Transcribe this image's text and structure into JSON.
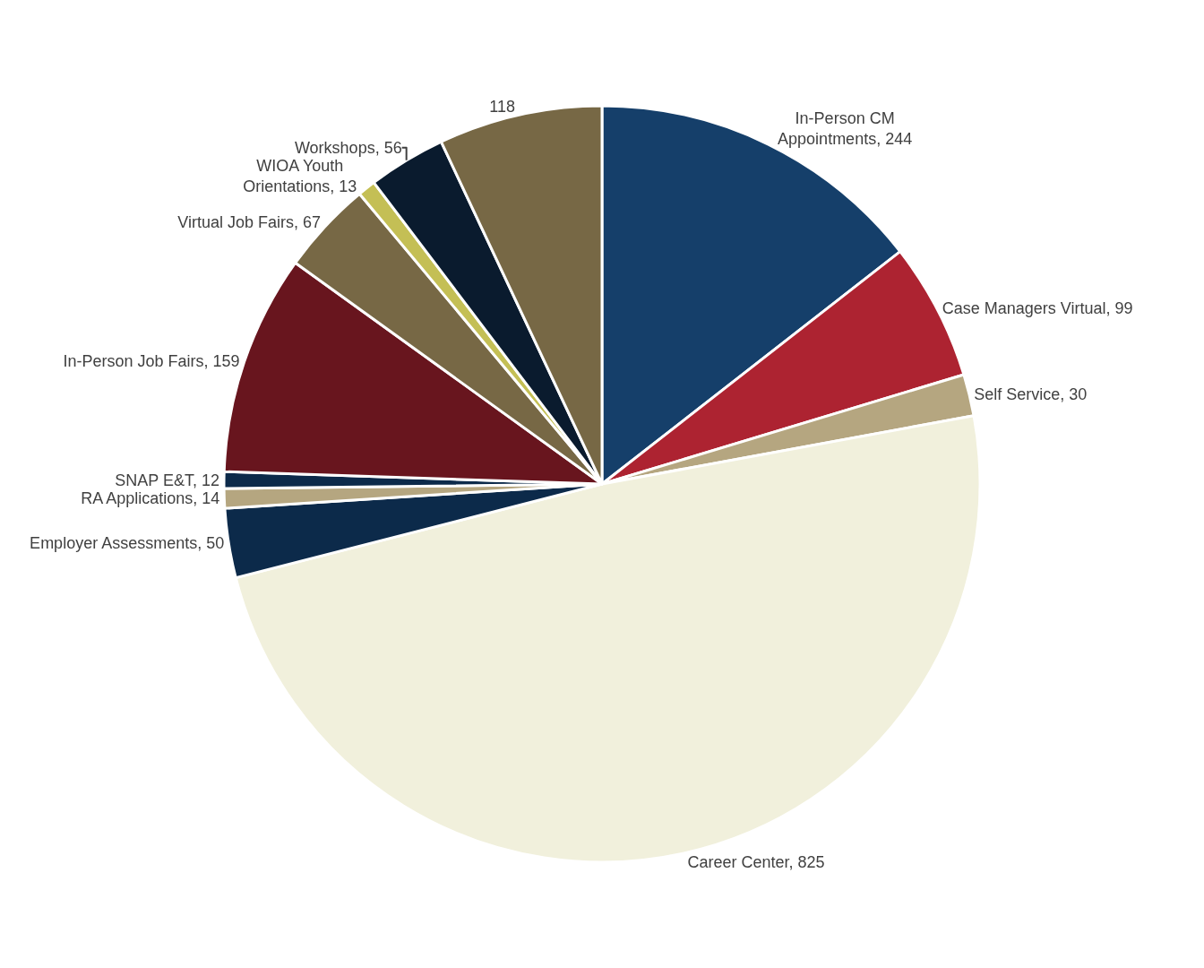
{
  "chart_data": {
    "type": "pie",
    "categories": [
      "In-Person CM Appointments",
      "Case Managers Virtual",
      "Self Service",
      "Career Center",
      "Employer Assessments",
      "RA Applications",
      "SNAP E&T",
      "In-Person Job Fairs",
      "Virtual Job Fairs",
      "WIOA Youth Orientations",
      "Workshops",
      null
    ],
    "values": [
      244,
      99,
      30,
      825,
      50,
      14,
      12,
      159,
      67,
      13,
      56,
      118
    ],
    "value_labels": [
      "244",
      "99",
      "30",
      "825",
      "50",
      "14",
      "12",
      "159",
      "67",
      "13",
      "56",
      "118"
    ],
    "colors": [
      "#153f6a",
      "#ad2331",
      "#b5a680",
      "#f1f0dc",
      "#0c2a4a",
      "#b5a680",
      "#0c2a4a",
      "#68151e",
      "#776845",
      "#c4bf55",
      "#0a1b2e",
      "#776845"
    ]
  }
}
